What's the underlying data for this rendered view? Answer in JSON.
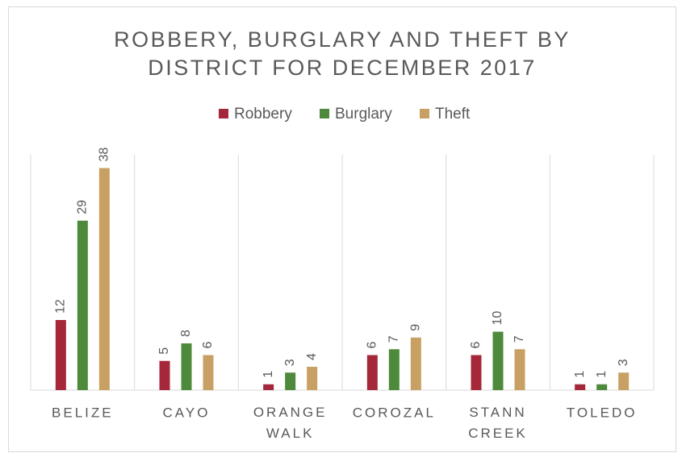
{
  "chart_data": {
    "type": "bar",
    "title": [
      "ROBBERY, BURGLARY AND THEFT BY",
      "DISTRICT FOR DECEMBER 2017"
    ],
    "categories": [
      "BELIZE",
      "CAYO",
      "ORANGE WALK",
      "COROZAL",
      "STANN CREEK",
      "TOLEDO"
    ],
    "series": [
      {
        "name": "Robbery",
        "color": "#a4283a",
        "values": [
          12,
          5,
          1,
          6,
          6,
          1
        ]
      },
      {
        "name": "Burglary",
        "color": "#4e8a3c",
        "values": [
          29,
          8,
          3,
          7,
          10,
          1
        ]
      },
      {
        "name": "Theft",
        "color": "#c9a063",
        "values": [
          38,
          6,
          4,
          9,
          7,
          3
        ]
      }
    ],
    "ylim": [
      0,
      40
    ],
    "legend": "top",
    "category_separators": true
  }
}
